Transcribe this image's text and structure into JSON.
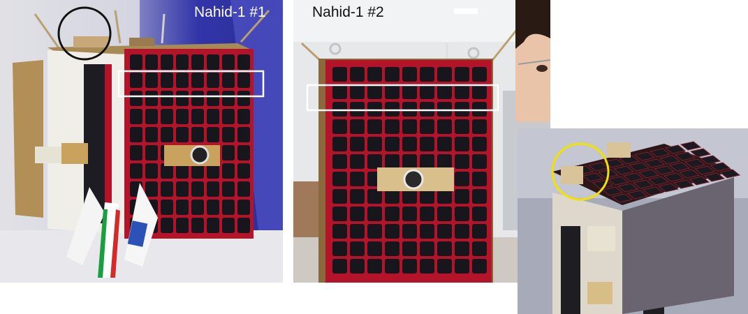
{
  "panels": [
    {
      "caption": "Nahid-1 #1"
    },
    {
      "caption": "Nahid-1 #2"
    },
    {
      "caption": ""
    }
  ],
  "colors": {
    "frame_red": "#b4142a",
    "cell_black": "#16161c",
    "gold": "#a88a55",
    "marker_black": "#111111",
    "marker_white": "#ffffff",
    "marker_yellow": "#f2e200"
  },
  "markers": [
    {
      "panel": 1,
      "shape": "circle",
      "color": "black",
      "target": "top-mounted component"
    },
    {
      "panel": 1,
      "shape": "rectangle",
      "color": "white",
      "target": "second row of solar cells"
    },
    {
      "panel": 2,
      "shape": "rectangle",
      "color": "white",
      "target": "second row of solar cells"
    },
    {
      "panel": 3,
      "shape": "circle",
      "color": "yellow",
      "target": "top-mounted component"
    }
  ]
}
